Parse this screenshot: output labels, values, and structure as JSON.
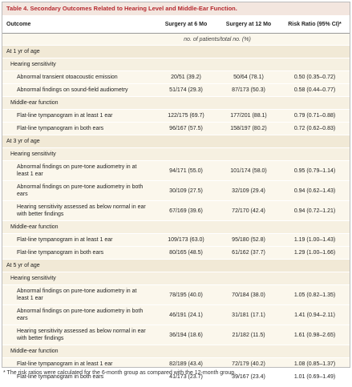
{
  "title": "Table 4. Secondary Outcomes Related to Hearing Level and Middle-Ear Function.",
  "columns": [
    "Outcome",
    "Surgery at 6 Mo",
    "Surgery at 12 Mo",
    "Risk Ratio (95% CI)*"
  ],
  "subheader": "no. of patients/total no. (%)",
  "sections": [
    {
      "label": "At 1 yr of age",
      "groups": [
        {
          "label": "Hearing sensitivity",
          "rows": [
            [
              "Abnormal transient otoacoustic emission",
              "20/51 (39.2)",
              "50/64 (78.1)",
              "0.50 (0.35–0.72)"
            ],
            [
              "Abnormal findings on sound-field audiometry",
              "51/174 (29.3)",
              "87/173 (50.3)",
              "0.58 (0.44–0.77)"
            ]
          ]
        },
        {
          "label": "Middle-ear function",
          "rows": [
            [
              "Flat-line tympanogram in at least 1 ear",
              "122/175 (69.7)",
              "177/201 (88.1)",
              "0.79 (0.71–0.88)"
            ],
            [
              "Flat-line tympanogram in both ears",
              "96/167 (57.5)",
              "158/197 (80.2)",
              "0.72 (0.62–0.83)"
            ]
          ]
        }
      ]
    },
    {
      "label": "At 3 yr of age",
      "groups": [
        {
          "label": "Hearing sensitivity",
          "rows": [
            [
              "Abnormal findings on pure-tone audiometry in at least 1 ear",
              "94/171 (55.0)",
              "101/174 (58.0)",
              "0.95 (0.79–1.14)"
            ],
            [
              "Abnormal findings on pure-tone audiometry in both ears",
              "30/109 (27.5)",
              "32/109 (29.4)",
              "0.94 (0.62–1.43)"
            ],
            [
              "Hearing sensitivity assessed as below normal in ear with better findings",
              "67/169 (39.6)",
              "72/170 (42.4)",
              "0.94 (0.72–1.21)"
            ]
          ]
        },
        {
          "label": "Middle-ear function",
          "rows": [
            [
              "Flat-line tympanogram in at least 1 ear",
              "109/173 (63.0)",
              "95/180 (52.8)",
              "1.19 (1.00–1.43)"
            ],
            [
              "Flat-line tympanogram in both ears",
              "80/165 (48.5)",
              "61/162 (37.7)",
              "1.29 (1.00–1.66)"
            ]
          ]
        }
      ]
    },
    {
      "label": "At 5 yr of age",
      "groups": [
        {
          "label": "Hearing sensitivity",
          "rows": [
            [
              "Abnormal findings on pure-tone audiometry in at least 1 ear",
              "78/195 (40.0)",
              "70/184 (38.0)",
              "1.05 (0.82–1.35)"
            ],
            [
              "Abnormal findings on pure-tone audiometry in both ears",
              "46/191 (24.1)",
              "31/181 (17.1)",
              "1.41 (0.94–2.11)"
            ],
            [
              "Hearing sensitivity assessed as below normal in ear with better findings",
              "36/194 (18.6)",
              "21/182 (11.5)",
              "1.61 (0.98–2.65)"
            ]
          ]
        },
        {
          "label": "Middle-ear function",
          "rows": [
            [
              "Flat-line tympanogram in at least 1 ear",
              "82/189 (43.4)",
              "72/179 (40.2)",
              "1.08 (0.85–1.37)"
            ],
            [
              "Flat-line tympanogram in both ears",
              "41/173 (23.7)",
              "39/167 (23.4)",
              "1.01 (0.69–1.49)"
            ]
          ]
        }
      ]
    }
  ],
  "footnote": "* The risk ratios were calculated for the 6-month group as compared with the 12-month group."
}
